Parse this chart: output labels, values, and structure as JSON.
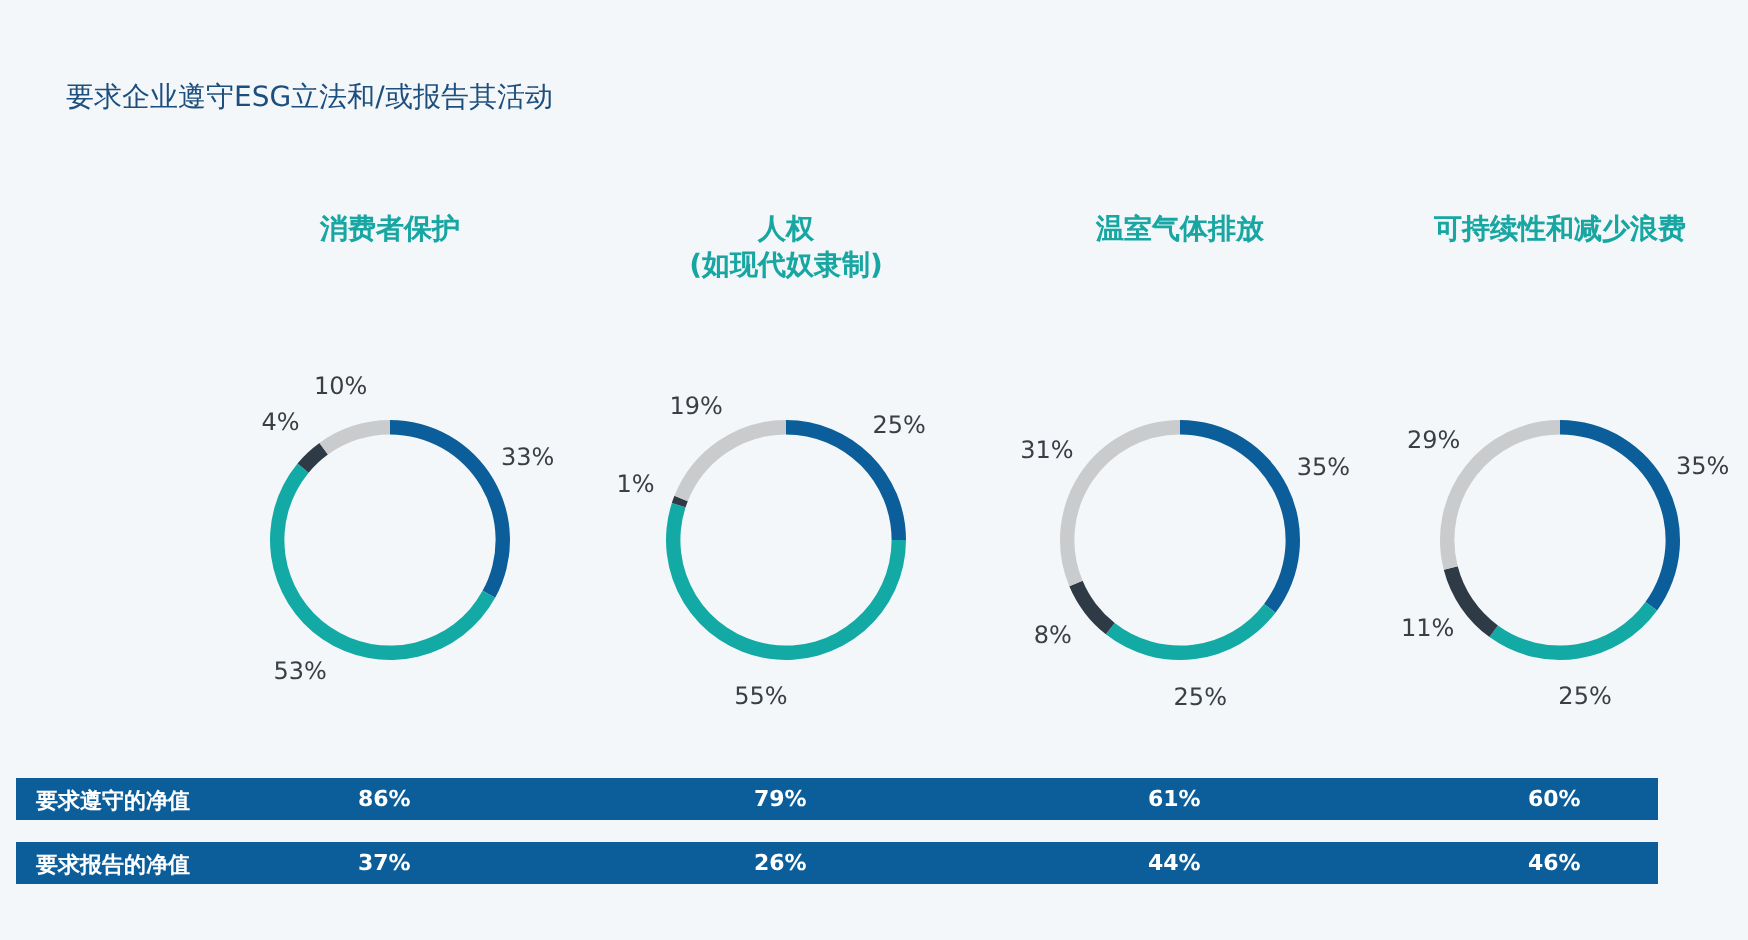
{
  "chart_data": [
    {
      "type": "other",
      "title": "要求企业遵守ESG立法和/或报告其活动"
    },
    {
      "type": "donut",
      "title": "消费者保护",
      "categories": [
        null,
        null,
        null,
        null
      ],
      "values": [
        33,
        53,
        4,
        10
      ],
      "value_labels": [
        "33%",
        "53%",
        "4%",
        "10%"
      ],
      "colors": [
        "#0b5e99",
        "#13aaa6",
        "#2e3a46",
        "#c9cbcd"
      ],
      "legend": false
    },
    {
      "type": "donut",
      "title": "人权\n(如现代奴隶制)",
      "categories": [
        null,
        null,
        null,
        null
      ],
      "values": [
        25,
        55,
        1,
        19
      ],
      "value_labels": [
        "25%",
        "55%",
        "1%",
        "19%"
      ],
      "colors": [
        "#0b5e99",
        "#13aaa6",
        "#2e3a46",
        "#c9cbcd"
      ],
      "legend": false
    },
    {
      "type": "donut",
      "title": "温室气体排放",
      "categories": [
        null,
        null,
        null,
        null
      ],
      "values": [
        35,
        25,
        8,
        31
      ],
      "value_labels": [
        "35%",
        "25%",
        "8%",
        "31%"
      ],
      "colors": [
        "#0b5e99",
        "#13aaa6",
        "#2e3a46",
        "#c9cbcd"
      ],
      "legend": false
    },
    {
      "type": "donut",
      "title": "可持续性和减少浪费",
      "categories": [
        null,
        null,
        null,
        null
      ],
      "values": [
        35,
        25,
        11,
        29
      ],
      "value_labels": [
        "35%",
        "25%",
        "11%",
        "29%"
      ],
      "colors": [
        "#0b5e99",
        "#13aaa6",
        "#2e3a46",
        "#c9cbcd"
      ],
      "legend": false
    },
    {
      "type": "other",
      "annotations": [
        "要求遵守的净值",
        "86%",
        "79%",
        "61%",
        "60%",
        "要求报告的净值",
        "37%",
        "26%",
        "44%",
        "46%"
      ]
    }
  ]
}
